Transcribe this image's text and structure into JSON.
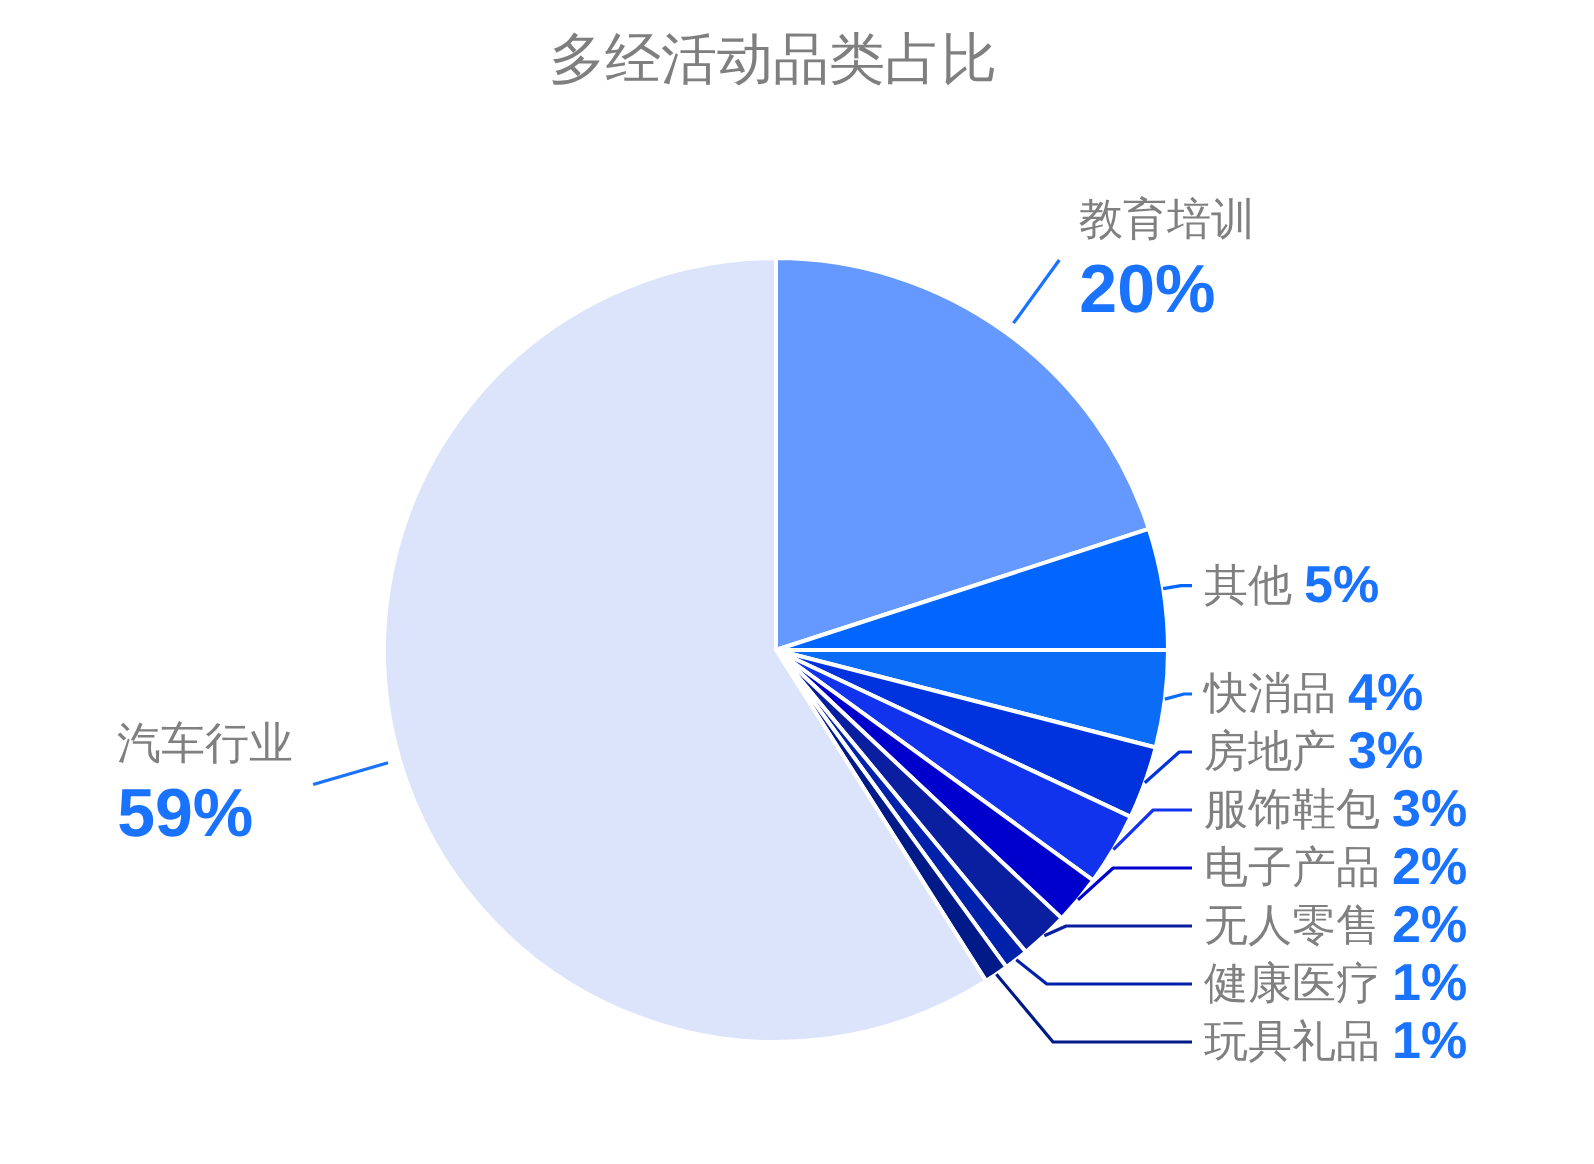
{
  "chart_data": {
    "type": "pie",
    "title": "多经活动品类占比",
    "categories": [
      "教育培训",
      "其他",
      "快消品",
      "房地产",
      "服饰鞋包",
      "电子产品",
      "无人零售",
      "健康医疗",
      "玩具礼品",
      "汽车行业"
    ],
    "values": [
      20,
      5,
      4,
      3,
      3,
      2,
      2,
      1,
      1,
      59
    ],
    "value_labels": [
      "20%",
      "5%",
      "4%",
      "3%",
      "3%",
      "2%",
      "2%",
      "1%",
      "1%",
      "59%"
    ],
    "colors": [
      "#6699ff",
      "#0066ff",
      "#0b6cf7",
      "#0033dd",
      "#1133ee",
      "#0000cc",
      "#0a1fa0",
      "#0022aa",
      "#001a88",
      "#dbe4fa"
    ]
  }
}
